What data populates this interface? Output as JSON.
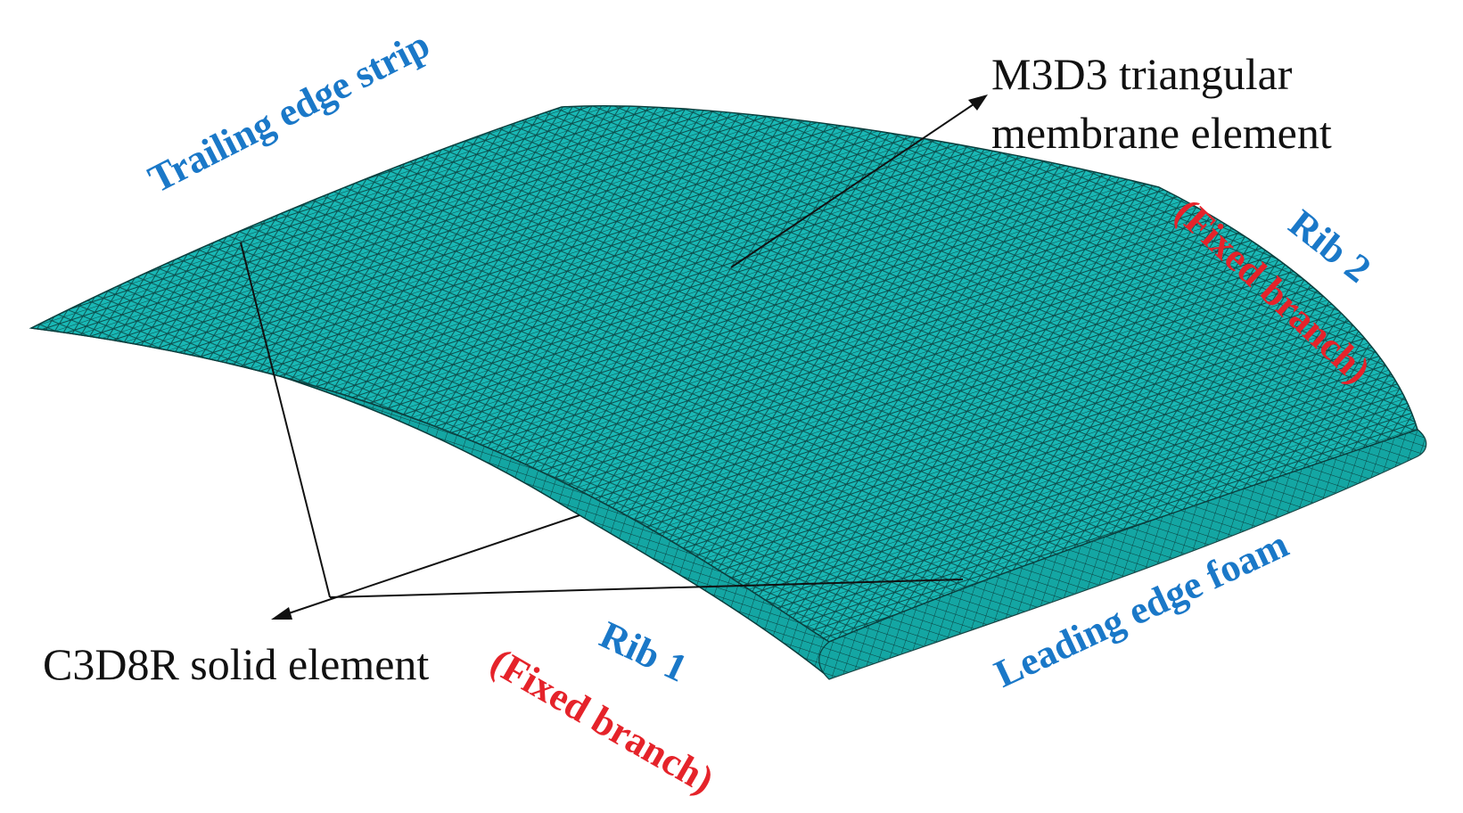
{
  "colors": {
    "mesh_fill": "#18b5b2",
    "mesh_fill_dark": "#0f8f8c",
    "mesh_line": "#0b3f3e",
    "label_blue": "#1a78c8",
    "label_red": "#e5232a",
    "leader": "#111111"
  },
  "labels": {
    "m3d3_line1": "M3D3 triangular",
    "m3d3_line2": "membrane element",
    "c3d8r": "C3D8R solid element",
    "trailing_edge_strip": "Trailing edge strip",
    "leading_edge_foam": "Leading edge foam",
    "rib1": "Rib 1",
    "rib1_note": "(Fixed branch)",
    "rib2": "Rib 2",
    "rib2_note": "(Fixed branch)"
  }
}
